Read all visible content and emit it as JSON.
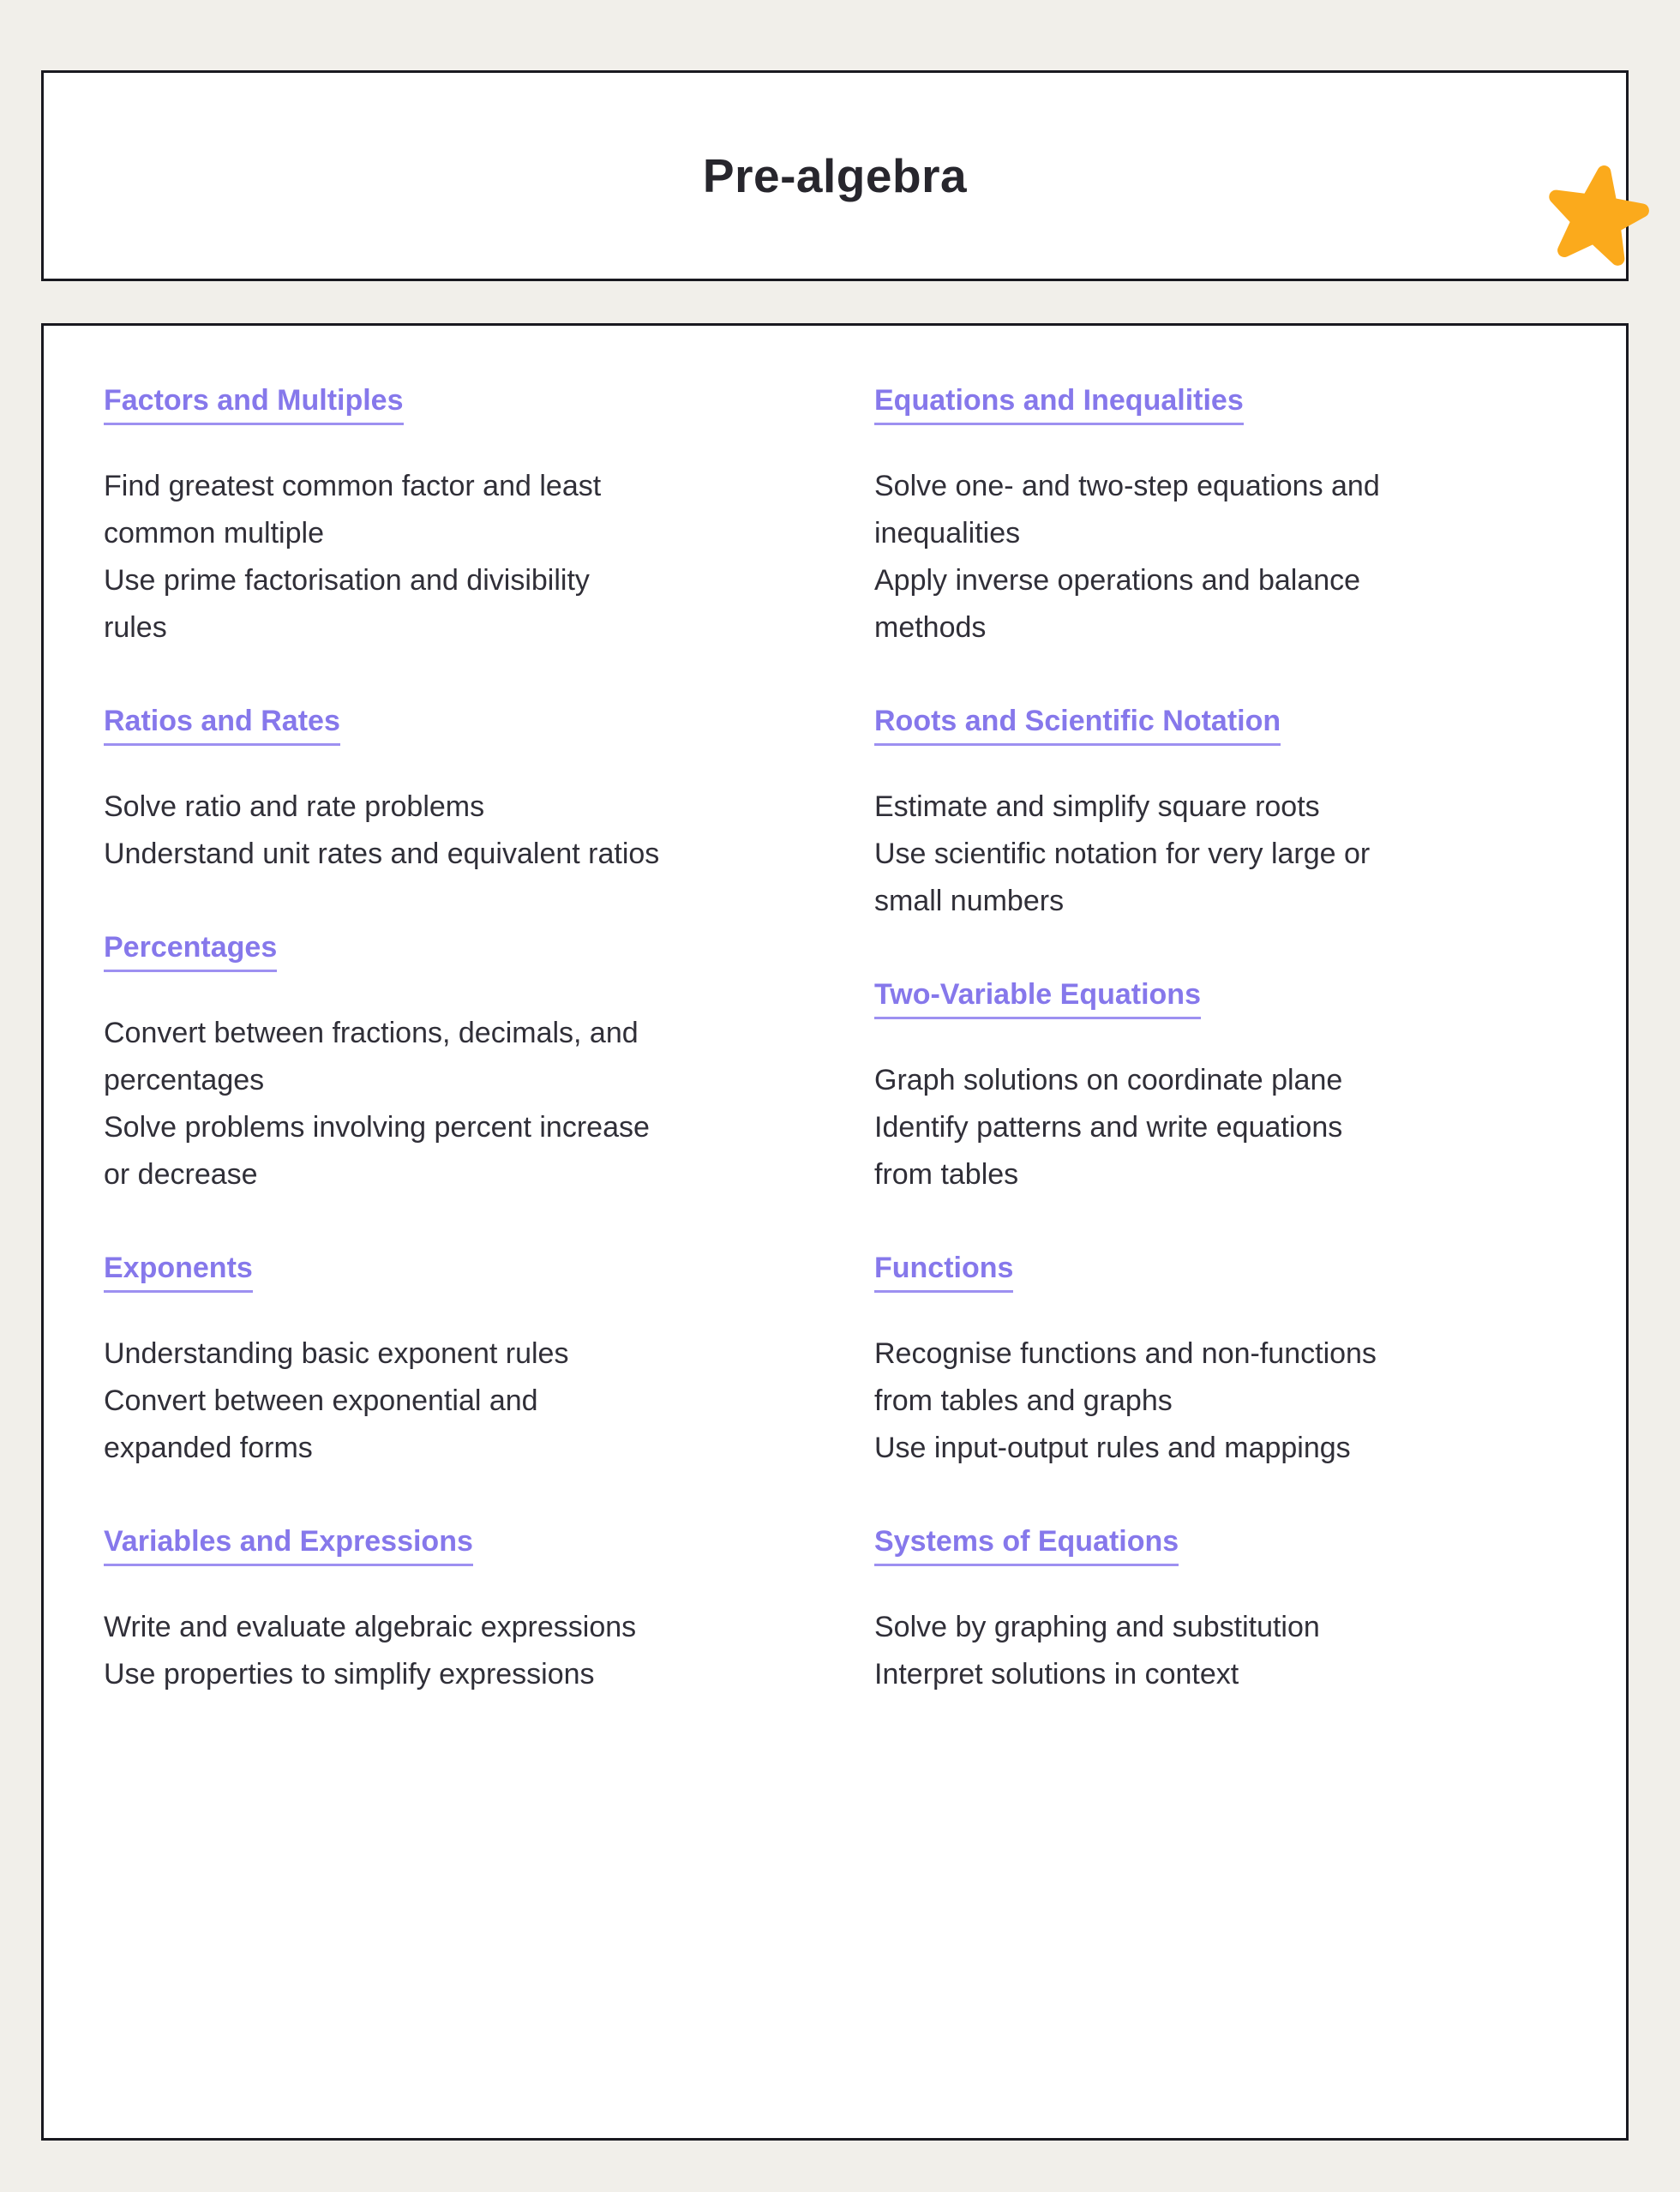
{
  "page": {
    "background_color": "#F1EFEA",
    "card_background": "#FFFFFF",
    "border_color": "#191920"
  },
  "header": {
    "title": "Pre-algebra",
    "title_color": "#27262D",
    "badge_icon": "star-icon",
    "badge_color": "#FBAA1C"
  },
  "content": {
    "heading_color": "#8678EB",
    "body_color": "#302F38",
    "columns": [
      {
        "sections": [
          {
            "heading": "Factors and Multiples",
            "lines": [
              "Find greatest common factor and least",
              "common multiple",
              "Use prime factorisation and divisibility",
              "rules"
            ]
          },
          {
            "heading": "Ratios and Rates",
            "lines": [
              "Solve ratio and rate problems",
              "Understand unit rates and equivalent ratios"
            ]
          },
          {
            "heading": "Percentages",
            "lines": [
              "Convert between fractions, decimals, and",
              "percentages",
              "Solve problems involving percent increase",
              "or decrease"
            ]
          },
          {
            "heading": "Exponents",
            "lines": [
              "Understanding basic exponent rules",
              "Convert between exponential and",
              "expanded forms"
            ]
          },
          {
            "heading": "Variables and Expressions",
            "lines": [
              "Write and evaluate algebraic expressions",
              "Use properties to simplify expressions"
            ]
          }
        ]
      },
      {
        "sections": [
          {
            "heading": "Equations and Inequalities",
            "lines": [
              "Solve one- and two-step equations and",
              "inequalities",
              "Apply inverse operations and balance",
              "methods"
            ]
          },
          {
            "heading": "Roots and Scientific Notation",
            "lines": [
              "Estimate and simplify square roots",
              "Use scientific notation for very large or",
              "small numbers"
            ]
          },
          {
            "heading": "Two-Variable Equations",
            "lines": [
              "Graph solutions on coordinate plane",
              "Identify patterns and write equations",
              "from tables"
            ]
          },
          {
            "heading": "Functions",
            "lines": [
              "Recognise functions and non-functions",
              "from tables and graphs",
              "Use input-output rules and mappings"
            ]
          },
          {
            "heading": "Systems of Equations",
            "lines": [
              "Solve by graphing and substitution",
              "Interpret solutions in context"
            ]
          }
        ]
      }
    ]
  }
}
